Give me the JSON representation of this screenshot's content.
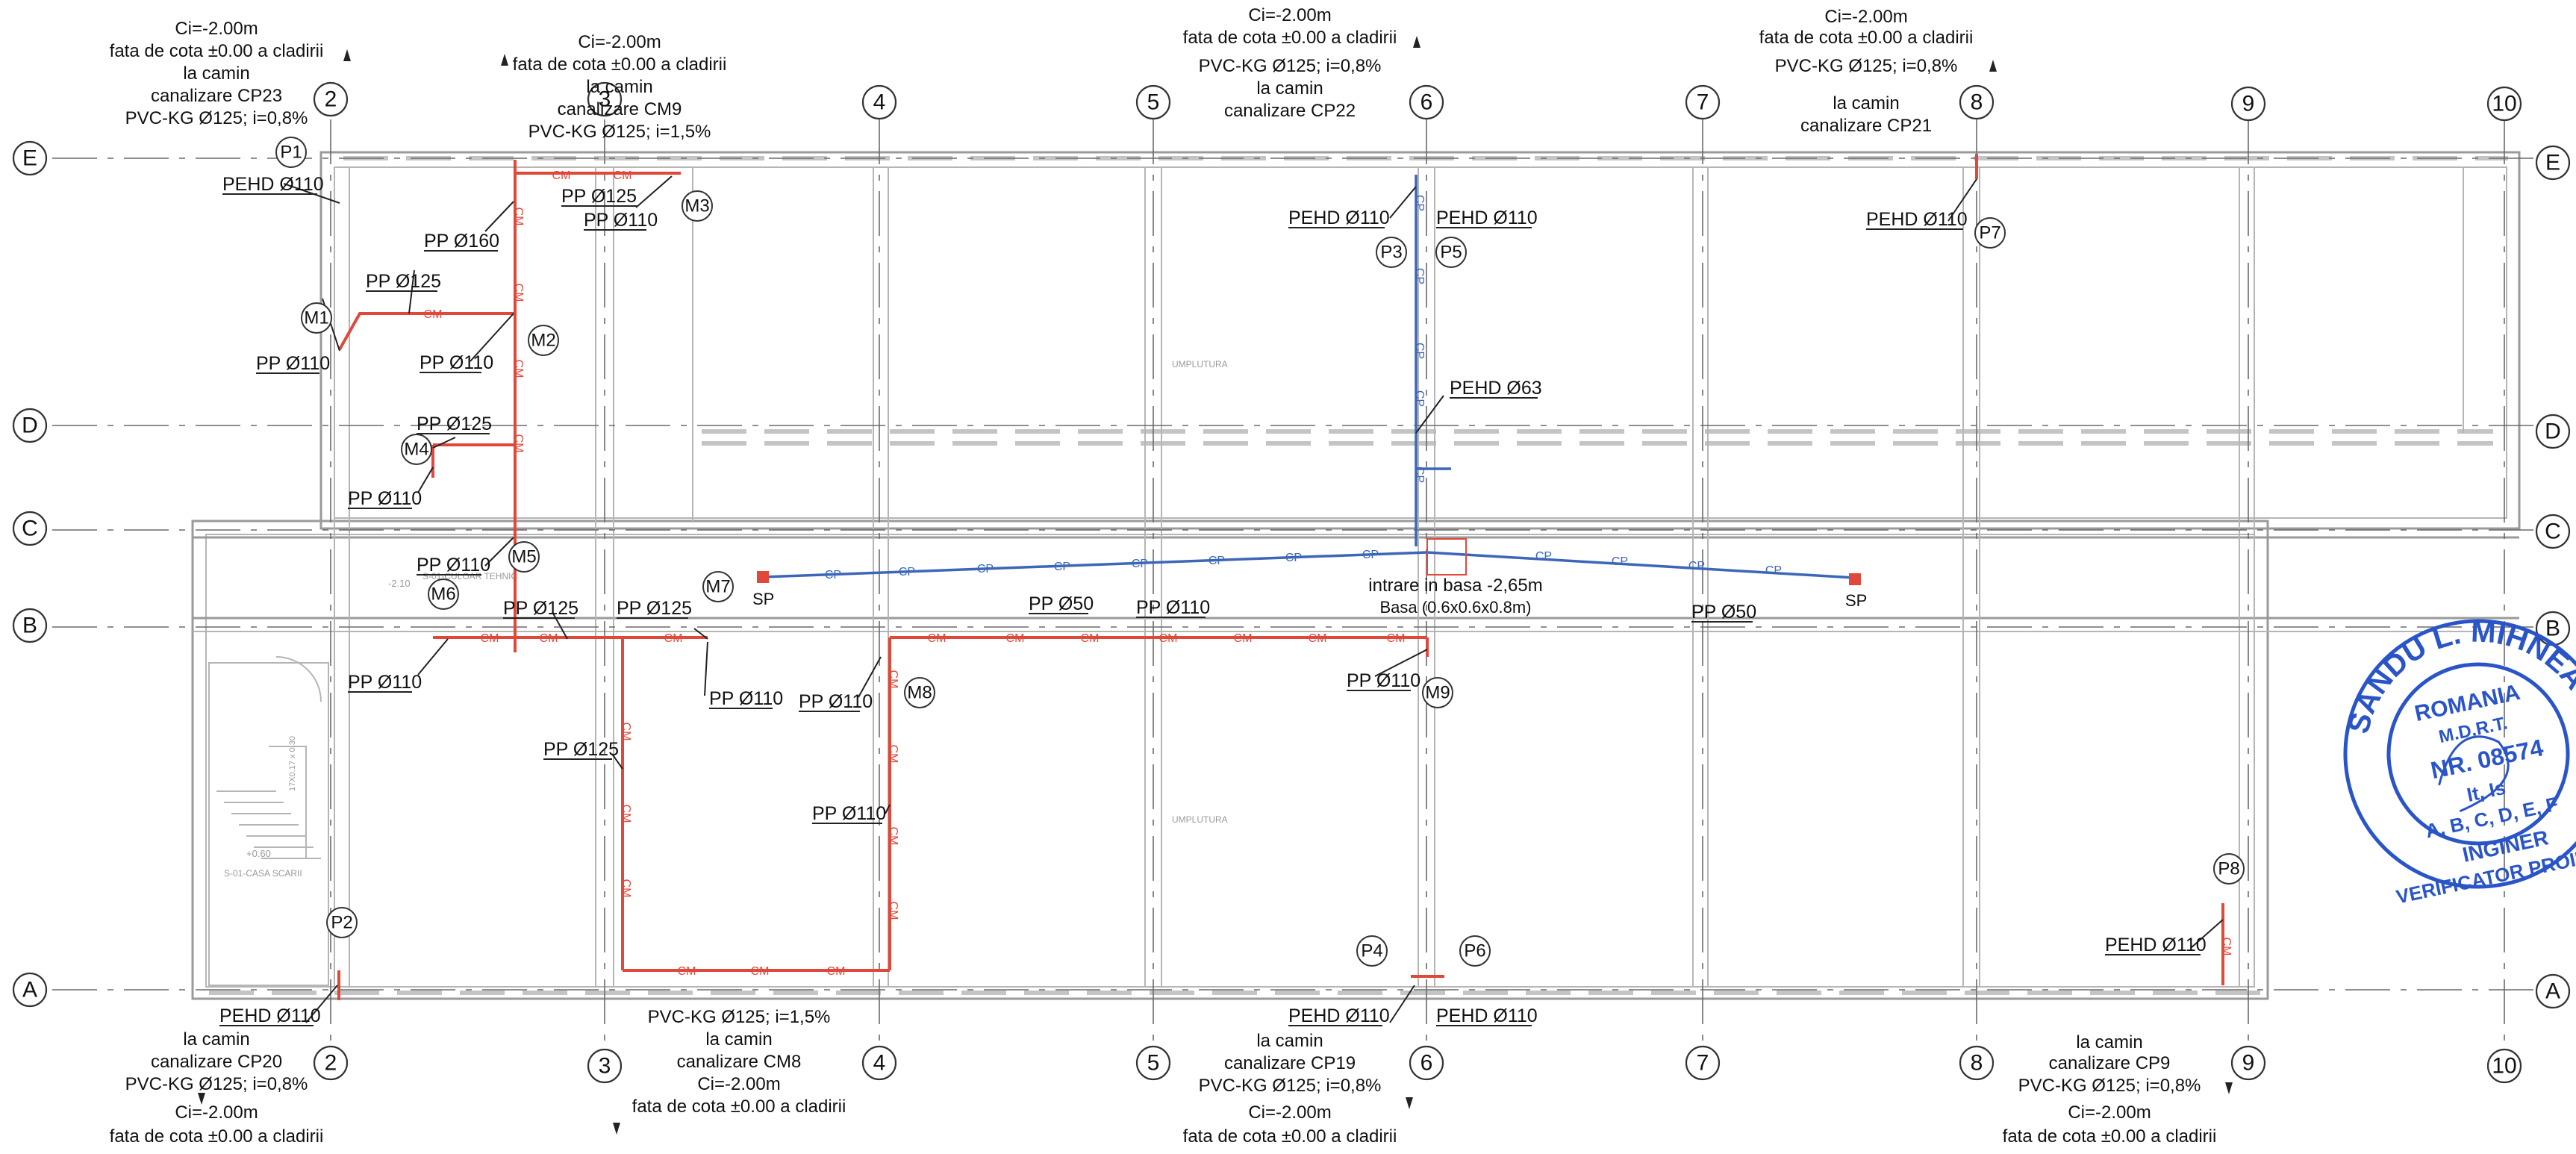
{
  "axes": {
    "columns": [
      "2",
      "3",
      "4",
      "5",
      "6",
      "7",
      "8",
      "9",
      "10"
    ],
    "rows": [
      "E",
      "D",
      "C",
      "B",
      "A"
    ]
  },
  "top_notes": [
    {
      "lines": [
        "Ci=-2.00m",
        "fata de cota ±0.00 a cladirii",
        "la camin",
        "canalizare CP23",
        "PVC-KG Ø125; i=0,8%"
      ]
    },
    {
      "lines": [
        "Ci=-2.00m",
        "fata de cota ±0.00 a cladirii",
        "la camin",
        "canalizare CM9",
        "PVC-KG Ø125; i=1,5%"
      ]
    },
    {
      "lines": [
        "Ci=-2.00m",
        "fata de cota ±0.00 a cladirii",
        "PVC-KG Ø125; i=0,8%",
        "la camin",
        "canalizare CP22"
      ]
    },
    {
      "lines": [
        "Ci=-2.00m",
        "fata de cota ±0.00 a cladirii",
        "PVC-KG Ø125; i=0,8%",
        "",
        "la camin",
        "canalizare CP21"
      ]
    }
  ],
  "bottom_notes": [
    {
      "lines": [
        "la camin",
        "canalizare CP20",
        "PVC-KG Ø125; i=0,8%",
        "Ci=-2.00m",
        "fata de cota ±0.00 a cladirii"
      ]
    },
    {
      "lines": [
        "PVC-KG Ø125; i=1,5%",
        "la camin",
        "canalizare CM8",
        "Ci=-2.00m",
        "fata de cota ±0.00 a cladirii"
      ]
    },
    {
      "lines": [
        "la camin",
        "canalizare CP19",
        "PVC-KG Ø125; i=0,8%",
        "Ci=-2.00m",
        "fata de cota ±0.00 a cladirii"
      ]
    },
    {
      "lines": [
        "la camin",
        "canalizare CP9",
        "PVC-KG Ø125; i=0,8%",
        "Ci=-2.00m",
        "fata de cota ±0.00 a cladirii"
      ]
    }
  ],
  "markers": [
    "P1",
    "M1",
    "M2",
    "M3",
    "M4",
    "M5",
    "M6",
    "M7",
    "M8",
    "M9",
    "P2",
    "P3",
    "P4",
    "P5",
    "P6",
    "P7",
    "P8"
  ],
  "pipe_labels": {
    "pehd_110": "PEHD Ø110",
    "pehd_63": "PEHD Ø63",
    "pp_160": "PP Ø160",
    "pp_125": "PP Ø125",
    "pp_110": "PP Ø110",
    "pp_50": "PP Ø50"
  },
  "pipe_tags": {
    "cm": "CM",
    "cp": "CP"
  },
  "sump": {
    "label": "SP"
  },
  "basin": {
    "line1": "intrare in basa -2,65m",
    "line2": "Basa (0.6x0.6x0.8m)"
  },
  "room_labels": {
    "umplutura": "UMPLUTURA",
    "culoar": "S-01-CULOAR TEHNIC",
    "casa_scara": "S-01-CASA SCARII",
    "level_210": "-2.10",
    "level_060": "+0.60",
    "stair_dims": "17X0.17 x 0.30"
  },
  "stamp": {
    "name": "SANDU L. MIHNEA",
    "country": "ROMANIA",
    "org": "M.D.R.T.",
    "number": "NR. 08574",
    "classes1": "It, Is",
    "classes2": "A, B, C, D, E, F",
    "role1": "INGINER",
    "role2": "VERIFICATOR PROIECTE"
  },
  "colors": {
    "sewer_pipe": "#e0483a",
    "pressure_pipe": "#3c67b8",
    "stamp": "#2a55c8"
  }
}
